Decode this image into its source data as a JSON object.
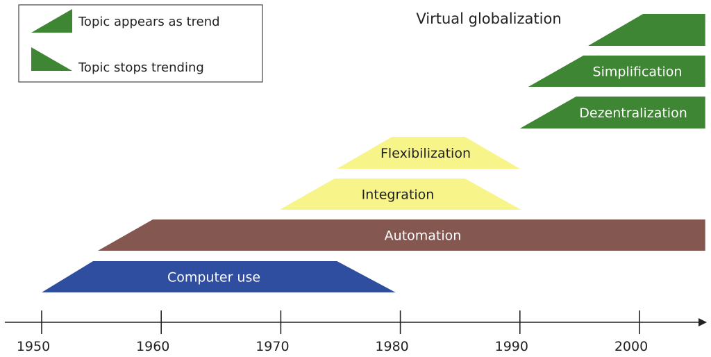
{
  "legend": {
    "appears_label": "Topic appears as trend",
    "stops_label": "Topic stops trending",
    "trend_color": "#3e8633"
  },
  "timeline": {
    "axis_start_year": 1945,
    "axis_end_year": 2006,
    "ticks": [
      {
        "year": 1950,
        "label": "1950"
      },
      {
        "year": 1960,
        "label": "1960"
      },
      {
        "year": 1970,
        "label": "1970"
      },
      {
        "year": 1980,
        "label": "1980"
      },
      {
        "year": 1990,
        "label": "1990"
      },
      {
        "year": 2000,
        "label": "2000"
      }
    ]
  },
  "trends": [
    {
      "id": "computer-use",
      "label": "Computer use",
      "color": "#2f4ea0",
      "text_color": "#ffffff",
      "bottom_start": 1950,
      "top_start": 1954.3,
      "top_end": 1974.7,
      "bottom_end": 1979.6
    },
    {
      "id": "automation",
      "label": "Automation",
      "color": "#845750",
      "text_color": "#ffffff",
      "bottom_start": 1954.7,
      "top_start": 1959.3,
      "top_end": 2005.5,
      "bottom_end": 2005.5
    },
    {
      "id": "integration",
      "label": "Integration",
      "color": "#f7f48a",
      "text_color": "#222222",
      "bottom_start": 1969.9,
      "top_start": 1974.5,
      "top_end": 1985.4,
      "bottom_end": 1990.1
    },
    {
      "id": "flexibilization",
      "label": "Flexibilization",
      "color": "#f7f48a",
      "text_color": "#222222",
      "bottom_start": 1974.7,
      "top_start": 1979.3,
      "top_end": 1985.4,
      "bottom_end": 1990
    },
    {
      "id": "dezentralization",
      "label": "Dezentralization",
      "color": "#3e8633",
      "text_color": "#ffffff",
      "bottom_start": 1990,
      "top_start": 1994.7,
      "top_end": 2005.5,
      "bottom_end": 2005.5
    },
    {
      "id": "simplification",
      "label": "Simplification",
      "color": "#3e8633",
      "text_color": "#ffffff",
      "bottom_start": 1990.7,
      "top_start": 1995.3,
      "top_end": 2005.5,
      "bottom_end": 2005.5
    },
    {
      "id": "virtual-globalization",
      "label": "Virtual globalization",
      "color": "#3e8633",
      "text_color": "#222222",
      "bottom_start": 1995.7,
      "top_start": 2000.3,
      "top_end": 2005.5,
      "bottom_end": 2005.5
    }
  ]
}
